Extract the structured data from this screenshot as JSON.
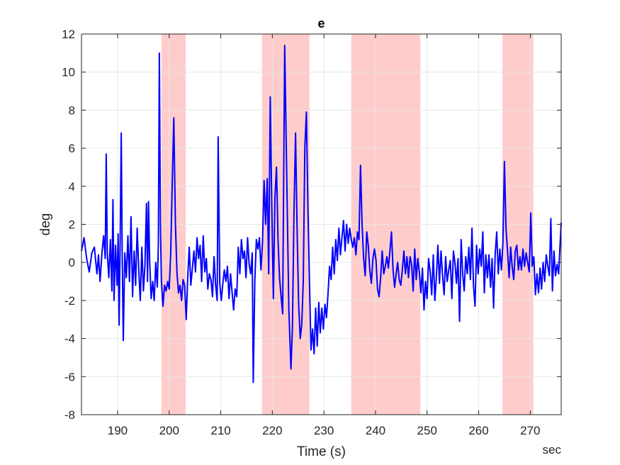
{
  "chart_data": {
    "type": "line",
    "title": "e",
    "xlabel": "Time (s)",
    "ylabel": "deg",
    "x_unit_note": "sec",
    "xlim": [
      183,
      276
    ],
    "ylim": [
      -8,
      12
    ],
    "xticks": [
      190,
      200,
      210,
      220,
      230,
      240,
      250,
      260,
      270
    ],
    "yticks": [
      -8,
      -6,
      -4,
      -2,
      0,
      2,
      4,
      6,
      8,
      10,
      12
    ],
    "grid": true,
    "colors": {
      "line": "#0000ff",
      "band": "#ffcccc",
      "grid": "#e6e6e6",
      "axis": "#262626"
    },
    "highlight_bands": [
      {
        "x_start": 198.5,
        "x_end": 203.2
      },
      {
        "x_start": 218.0,
        "x_end": 227.2
      },
      {
        "x_start": 235.3,
        "x_end": 248.7
      },
      {
        "x_start": 264.6,
        "x_end": 270.6
      }
    ],
    "series": [
      {
        "values": [
          [
            183.0,
            0.6
          ],
          [
            183.5,
            1.3
          ],
          [
            184.0,
            0.2
          ],
          [
            184.5,
            -0.5
          ],
          [
            185.0,
            0.5
          ],
          [
            185.5,
            0.8
          ],
          [
            186.0,
            -0.6
          ],
          [
            186.3,
            0.4
          ],
          [
            186.6,
            -1.0
          ],
          [
            187.0,
            0.6
          ],
          [
            187.3,
            1.4
          ],
          [
            187.6,
            0.2
          ],
          [
            187.8,
            5.7
          ],
          [
            188.0,
            0.5
          ],
          [
            188.3,
            -0.8
          ],
          [
            188.6,
            1.2
          ],
          [
            188.9,
            -1.5
          ],
          [
            189.1,
            3.3
          ],
          [
            189.3,
            -2.0
          ],
          [
            189.6,
            0.9
          ],
          [
            189.9,
            -1.2
          ],
          [
            190.1,
            1.5
          ],
          [
            190.3,
            -3.3
          ],
          [
            190.5,
            1.2
          ],
          [
            190.7,
            6.8
          ],
          [
            190.9,
            0.3
          ],
          [
            191.1,
            -4.1
          ],
          [
            191.4,
            0.5
          ],
          [
            191.7,
            -0.8
          ],
          [
            192.0,
            1.4
          ],
          [
            192.3,
            -1.0
          ],
          [
            192.6,
            2.4
          ],
          [
            192.9,
            -1.8
          ],
          [
            193.2,
            0.6
          ],
          [
            193.5,
            -1.2
          ],
          [
            193.8,
            1.8
          ],
          [
            194.1,
            -0.4
          ],
          [
            194.4,
            -2.0
          ],
          [
            194.7,
            0.8
          ],
          [
            195.0,
            -1.5
          ],
          [
            195.3,
            -0.2
          ],
          [
            195.6,
            3.1
          ],
          [
            195.8,
            -1.0
          ],
          [
            196.0,
            3.2
          ],
          [
            196.2,
            0.2
          ],
          [
            196.5,
            -1.9
          ],
          [
            196.8,
            -1.0
          ],
          [
            197.1,
            -2.0
          ],
          [
            197.4,
            0.0
          ],
          [
            197.7,
            -1.3
          ],
          [
            197.9,
            1.0
          ],
          [
            198.1,
            11.0
          ],
          [
            198.3,
            2.0
          ],
          [
            198.5,
            -1.0
          ],
          [
            198.8,
            -2.3
          ],
          [
            199.1,
            -1.2
          ],
          [
            199.4,
            -1.5
          ],
          [
            199.7,
            -1.0
          ],
          [
            200.0,
            -1.4
          ],
          [
            200.3,
            0.5
          ],
          [
            200.6,
            4.2
          ],
          [
            200.9,
            7.6
          ],
          [
            201.2,
            2.1
          ],
          [
            201.5,
            -0.5
          ],
          [
            201.8,
            -1.6
          ],
          [
            202.1,
            -1.2
          ],
          [
            202.4,
            -2.0
          ],
          [
            202.7,
            -0.9
          ],
          [
            203.0,
            -1.2
          ],
          [
            203.3,
            -3.0
          ],
          [
            203.6,
            -0.7
          ],
          [
            203.9,
            0.8
          ],
          [
            204.2,
            -1.2
          ],
          [
            204.5,
            -0.3
          ],
          [
            204.8,
            0.6
          ],
          [
            205.1,
            -0.5
          ],
          [
            205.4,
            1.3
          ],
          [
            205.7,
            0.2
          ],
          [
            206.0,
            0.9
          ],
          [
            206.3,
            -1.0
          ],
          [
            206.6,
            1.4
          ],
          [
            206.9,
            -0.5
          ],
          [
            207.2,
            0.2
          ],
          [
            207.5,
            -1.4
          ],
          [
            207.8,
            -0.6
          ],
          [
            208.1,
            -0.9
          ],
          [
            208.4,
            -1.8
          ],
          [
            208.7,
            0.3
          ],
          [
            209.0,
            -1.2
          ],
          [
            209.3,
            -2.0
          ],
          [
            209.5,
            6.6
          ],
          [
            209.8,
            -1.1
          ],
          [
            210.1,
            -2.0
          ],
          [
            210.4,
            -1.1
          ],
          [
            210.7,
            -0.4
          ],
          [
            211.0,
            -1.0
          ],
          [
            211.3,
            -0.2
          ],
          [
            211.6,
            -1.9
          ],
          [
            211.9,
            -0.6
          ],
          [
            212.2,
            -1.6
          ],
          [
            212.5,
            -2.5
          ],
          [
            212.8,
            -1.4
          ],
          [
            213.1,
            -1.8
          ],
          [
            213.4,
            0.8
          ],
          [
            213.7,
            -0.6
          ],
          [
            214.0,
            1.2
          ],
          [
            214.3,
            0.2
          ],
          [
            214.6,
            0.6
          ],
          [
            214.9,
            -0.8
          ],
          [
            215.2,
            1.3
          ],
          [
            215.5,
            -0.1
          ],
          [
            215.8,
            -0.6
          ],
          [
            216.1,
            0.5
          ],
          [
            216.3,
            -6.3
          ],
          [
            216.6,
            -1.0
          ],
          [
            216.9,
            1.2
          ],
          [
            217.2,
            0.7
          ],
          [
            217.5,
            1.3
          ],
          [
            217.8,
            -0.4
          ],
          [
            218.1,
            1.1
          ],
          [
            218.4,
            4.3
          ],
          [
            218.7,
            2.0
          ],
          [
            219.0,
            4.4
          ],
          [
            219.3,
            -0.6
          ],
          [
            219.6,
            8.7
          ],
          [
            219.9,
            2.9
          ],
          [
            220.2,
            -1.9
          ],
          [
            220.5,
            3.4
          ],
          [
            220.8,
            5.0
          ],
          [
            221.1,
            1.2
          ],
          [
            221.4,
            -0.8
          ],
          [
            221.7,
            -1.8
          ],
          [
            222.0,
            -2.7
          ],
          [
            222.4,
            11.4
          ],
          [
            222.8,
            4.5
          ],
          [
            223.2,
            -2.4
          ],
          [
            223.6,
            -5.6
          ],
          [
            223.9,
            -3.4
          ],
          [
            224.2,
            2.6
          ],
          [
            224.5,
            6.8
          ],
          [
            224.8,
            1.7
          ],
          [
            225.1,
            -2.2
          ],
          [
            225.4,
            -4.0
          ],
          [
            225.7,
            -3.3
          ],
          [
            226.0,
            -1.0
          ],
          [
            226.3,
            6.0
          ],
          [
            226.6,
            7.9
          ],
          [
            226.9,
            2.8
          ],
          [
            227.2,
            -1.1
          ],
          [
            227.5,
            -4.6
          ],
          [
            227.8,
            -3.5
          ],
          [
            228.1,
            -4.8
          ],
          [
            228.4,
            -2.4
          ],
          [
            228.7,
            -4.4
          ],
          [
            229.0,
            -2.1
          ],
          [
            229.3,
            -3.7
          ],
          [
            229.6,
            -2.4
          ],
          [
            229.9,
            -3.5
          ],
          [
            230.2,
            -2.2
          ],
          [
            230.5,
            -2.9
          ],
          [
            230.8,
            -1.6
          ],
          [
            231.1,
            -0.2
          ],
          [
            231.4,
            -0.9
          ],
          [
            231.7,
            0.8
          ],
          [
            232.0,
            -0.6
          ],
          [
            232.3,
            1.2
          ],
          [
            232.6,
            0.1
          ],
          [
            232.9,
            1.8
          ],
          [
            233.2,
            0.4
          ],
          [
            233.5,
            1.3
          ],
          [
            233.8,
            2.2
          ],
          [
            234.1,
            0.6
          ],
          [
            234.4,
            2.0
          ],
          [
            234.7,
            1.0
          ],
          [
            235.0,
            1.8
          ],
          [
            235.3,
            1.2
          ],
          [
            235.6,
            0.8
          ],
          [
            235.9,
            1.3
          ],
          [
            236.2,
            0.4
          ],
          [
            236.5,
            1.6
          ],
          [
            236.8,
            1.2
          ],
          [
            237.1,
            5.1
          ],
          [
            237.4,
            2.0
          ],
          [
            237.7,
            0.2
          ],
          [
            238.0,
            -0.7
          ],
          [
            238.3,
            1.6
          ],
          [
            238.6,
            0.9
          ],
          [
            238.9,
            -0.4
          ],
          [
            239.2,
            -1.1
          ],
          [
            239.5,
            0.2
          ],
          [
            239.8,
            0.7
          ],
          [
            240.1,
            0.1
          ],
          [
            240.4,
            -1.4
          ],
          [
            240.7,
            -1.8
          ],
          [
            241.0,
            -0.8
          ],
          [
            241.3,
            0.6
          ],
          [
            241.6,
            -0.6
          ],
          [
            241.9,
            -0.2
          ],
          [
            242.2,
            0.3
          ],
          [
            242.5,
            -0.3
          ],
          [
            242.8,
            0.6
          ],
          [
            243.1,
            1.6
          ],
          [
            243.4,
            -0.4
          ],
          [
            243.7,
            -1.3
          ],
          [
            244.0,
            -0.6
          ],
          [
            244.3,
            0.0
          ],
          [
            244.6,
            -0.9
          ],
          [
            244.9,
            -1.2
          ],
          [
            245.2,
            -0.4
          ],
          [
            245.5,
            0.6
          ],
          [
            245.8,
            -0.6
          ],
          [
            246.1,
            0.3
          ],
          [
            246.4,
            -0.8
          ],
          [
            246.7,
            0.3
          ],
          [
            247.0,
            -0.1
          ],
          [
            247.3,
            -1.5
          ],
          [
            247.6,
            0.7
          ],
          [
            247.9,
            -0.9
          ],
          [
            248.2,
            0.2
          ],
          [
            248.5,
            -0.5
          ],
          [
            248.8,
            -1.6
          ],
          [
            249.1,
            -0.3
          ],
          [
            249.4,
            -2.5
          ],
          [
            249.7,
            -1.0
          ],
          [
            250.0,
            -1.9
          ],
          [
            250.3,
            0.2
          ],
          [
            250.6,
            -0.5
          ],
          [
            250.9,
            -1.7
          ],
          [
            251.2,
            0.4
          ],
          [
            251.5,
            -2.0
          ],
          [
            251.8,
            -0.8
          ],
          [
            252.1,
            0.9
          ],
          [
            252.4,
            -1.1
          ],
          [
            252.7,
            0.6
          ],
          [
            253.0,
            -0.7
          ],
          [
            253.3,
            -1.7
          ],
          [
            253.6,
            0.3
          ],
          [
            253.9,
            -1.0
          ],
          [
            254.2,
            -0.4
          ],
          [
            254.5,
            0.1
          ],
          [
            254.8,
            -1.9
          ],
          [
            255.1,
            0.6
          ],
          [
            255.4,
            0.0
          ],
          [
            255.7,
            -1.1
          ],
          [
            256.0,
            0.2
          ],
          [
            256.3,
            -3.1
          ],
          [
            256.6,
            1.2
          ],
          [
            256.9,
            -0.6
          ],
          [
            257.2,
            -1.5
          ],
          [
            257.5,
            0.3
          ],
          [
            257.8,
            -0.6
          ],
          [
            258.1,
            0.8
          ],
          [
            258.4,
            -0.9
          ],
          [
            258.7,
            1.8
          ],
          [
            259.0,
            -1.2
          ],
          [
            259.3,
            -2.3
          ],
          [
            259.6,
            0.9
          ],
          [
            259.9,
            -0.6
          ],
          [
            260.2,
            0.7
          ],
          [
            260.5,
            -0.2
          ],
          [
            260.8,
            1.6
          ],
          [
            261.1,
            -1.6
          ],
          [
            261.4,
            0.4
          ],
          [
            261.7,
            -0.8
          ],
          [
            262.0,
            0.4
          ],
          [
            262.3,
            -1.3
          ],
          [
            262.6,
            0.2
          ],
          [
            262.9,
            -2.4
          ],
          [
            263.2,
            0.4
          ],
          [
            263.5,
            1.6
          ],
          [
            263.8,
            -0.6
          ],
          [
            264.1,
            0.7
          ],
          [
            264.4,
            -0.4
          ],
          [
            264.7,
            1.0
          ],
          [
            265.0,
            5.3
          ],
          [
            265.3,
            1.8
          ],
          [
            265.6,
            0.6
          ],
          [
            265.9,
            -0.8
          ],
          [
            266.2,
            0.8
          ],
          [
            266.5,
            -0.2
          ],
          [
            266.8,
            -0.9
          ],
          [
            267.1,
            0.6
          ],
          [
            267.4,
            0.9
          ],
          [
            267.7,
            -0.4
          ],
          [
            268.0,
            0.3
          ],
          [
            268.3,
            -0.4
          ],
          [
            268.6,
            0.7
          ],
          [
            268.9,
            -0.2
          ],
          [
            269.2,
            0.5
          ],
          [
            269.5,
            0.0
          ],
          [
            269.8,
            -0.5
          ],
          [
            270.1,
            2.6
          ],
          [
            270.4,
            -0.2
          ],
          [
            270.7,
            0.3
          ],
          [
            271.0,
            -1.7
          ],
          [
            271.3,
            -0.6
          ],
          [
            271.6,
            -1.6
          ],
          [
            271.9,
            -0.3
          ],
          [
            272.2,
            -1.4
          ],
          [
            272.5,
            0.0
          ],
          [
            272.8,
            -1.0
          ],
          [
            273.1,
            0.4
          ],
          [
            273.4,
            -0.2
          ],
          [
            273.7,
            -0.7
          ],
          [
            274.0,
            2.3
          ],
          [
            274.3,
            -1.5
          ],
          [
            274.6,
            0.6
          ],
          [
            274.9,
            -0.7
          ],
          [
            275.2,
            -0.1
          ],
          [
            275.5,
            -0.6
          ],
          [
            276.0,
            2.1
          ]
        ]
      }
    ]
  }
}
